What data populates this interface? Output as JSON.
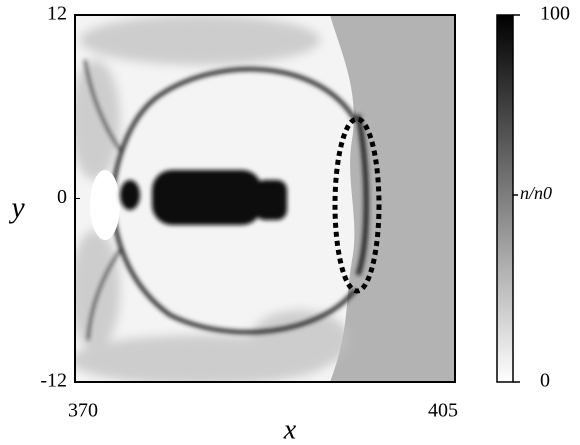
{
  "chart_data": {
    "type": "heatmap",
    "xlabel": "x",
    "ylabel": "y",
    "xlim": [
      370,
      405
    ],
    "xticks": [
      370,
      405
    ],
    "ylim": [
      -12,
      12
    ],
    "yticks": [
      -12,
      0,
      12
    ],
    "colorbar": {
      "lim": [
        0,
        100
      ],
      "ticks": [
        0,
        100
      ],
      "label": "n/n0"
    }
  }
}
